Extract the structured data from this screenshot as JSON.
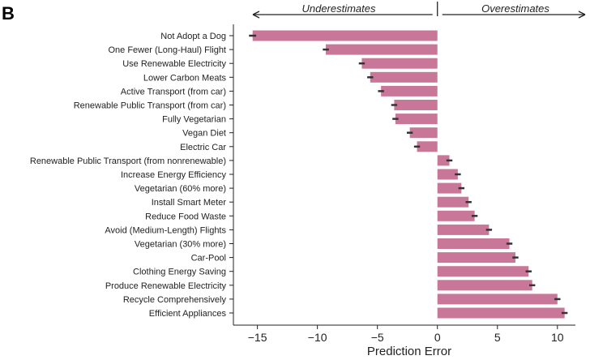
{
  "panel_label": "B",
  "chart_data": {
    "type": "bar",
    "orientation": "horizontal",
    "xlabel": "Prediction Error",
    "ylabel": "",
    "xlim": [
      -17,
      11.5
    ],
    "xticks": [
      -15,
      -10,
      -5,
      0,
      5,
      10
    ],
    "grid": false,
    "annotations": {
      "left": "Underestimates",
      "right": "Overestimates"
    },
    "bar_color": "#c97799",
    "error_color": "#333333",
    "categories": [
      "Not Adopt a Dog",
      "One Fewer (Long-Haul) Flight",
      "Use Renewable Electricity",
      "Lower Carbon Meats",
      "Active Transport (from car)",
      "Renewable Public Transport (from car)",
      "Fully Vegetarian",
      "Vegan Diet",
      "Electric Car",
      "Renewable Public Transport (from nonrenewable)",
      "Increase Energy Efficiency",
      "Vegetarian (60% more)",
      "Install Smart Meter",
      "Reduce Food Waste",
      "Avoid (Medium-Length) Flights",
      "Vegetarian (30% more)",
      "Car-Pool",
      "Clothing Energy Saving",
      "Produce Renewable Electricity",
      "Recycle Comprehensively",
      "Efficient Appliances"
    ],
    "values": [
      -15.4,
      -9.3,
      -6.3,
      -5.6,
      -4.7,
      -3.6,
      -3.5,
      -2.3,
      -1.7,
      1.0,
      1.7,
      2.0,
      2.6,
      3.1,
      4.3,
      6.0,
      6.5,
      7.6,
      7.9,
      10.0,
      10.6
    ],
    "errors": [
      0.3,
      0.25,
      0.25,
      0.25,
      0.25,
      0.25,
      0.25,
      0.25,
      0.25,
      0.25,
      0.25,
      0.25,
      0.25,
      0.25,
      0.25,
      0.25,
      0.25,
      0.25,
      0.25,
      0.25,
      0.25
    ]
  }
}
